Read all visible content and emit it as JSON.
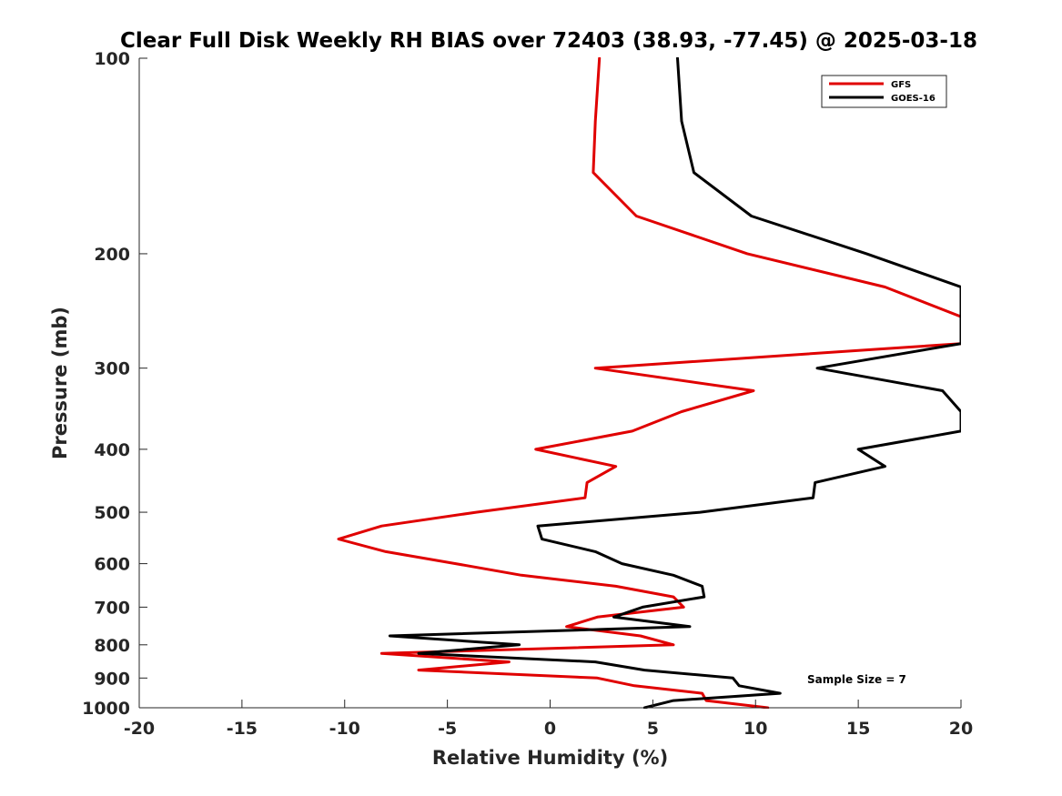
{
  "chart_data": {
    "type": "line",
    "title": "Clear Full Disk Weekly RH BIAS over 72403 (38.93, -77.45) @ 2025-03-18",
    "xlabel": "Relative Humidity (%)",
    "ylabel": "Pressure (mb)",
    "xlim": [
      -20,
      20
    ],
    "ylim": [
      100,
      1000
    ],
    "y_scale": "log",
    "y_reversed": true,
    "x_ticks": [
      "-20",
      "-15",
      "-10",
      "-5",
      "0",
      "5",
      "10",
      "15",
      "20"
    ],
    "y_ticks": [
      "100",
      "200",
      "300",
      "400",
      "500",
      "600",
      "700",
      "800",
      "900",
      "1000"
    ],
    "grid": false,
    "legend_position": "top-right",
    "annotation": "Sample Size = 7",
    "series": [
      {
        "name": "GFS",
        "color": "#e00000",
        "points": [
          [
            2.4,
            100
          ],
          [
            2.2,
            125
          ],
          [
            2.1,
            150
          ],
          [
            4.2,
            175
          ],
          [
            9.6,
            200
          ],
          [
            16.3,
            225
          ],
          [
            20.0,
            250
          ],
          [
            20.0,
            275
          ],
          [
            2.2,
            300
          ],
          [
            9.9,
            325
          ],
          [
            6.4,
            350
          ],
          [
            4.0,
            375
          ],
          [
            -0.7,
            400
          ],
          [
            3.2,
            425
          ],
          [
            1.8,
            450
          ],
          [
            1.7,
            475
          ],
          [
            -3.6,
            500
          ],
          [
            -8.2,
            525
          ],
          [
            -10.3,
            550
          ],
          [
            -8.0,
            575
          ],
          [
            -4.6,
            600
          ],
          [
            -1.4,
            625
          ],
          [
            3.2,
            650
          ],
          [
            6.0,
            675
          ],
          [
            6.5,
            700
          ],
          [
            2.3,
            725
          ],
          [
            0.8,
            750
          ],
          [
            4.4,
            775
          ],
          [
            6.0,
            800
          ],
          [
            -8.2,
            825
          ],
          [
            -2.0,
            850
          ],
          [
            -6.4,
            875
          ],
          [
            2.3,
            900
          ],
          [
            4.1,
            925
          ],
          [
            7.4,
            950
          ],
          [
            7.6,
            975
          ],
          [
            10.6,
            1000
          ]
        ]
      },
      {
        "name": "GOES-16",
        "color": "#000000",
        "points": [
          [
            6.2,
            100
          ],
          [
            6.4,
            125
          ],
          [
            7.0,
            150
          ],
          [
            9.8,
            175
          ],
          [
            15.4,
            200
          ],
          [
            20.0,
            225
          ],
          [
            20.0,
            250
          ],
          [
            20.0,
            275
          ],
          [
            13.0,
            300
          ],
          [
            19.1,
            325
          ],
          [
            20.0,
            350
          ],
          [
            20.0,
            375
          ],
          [
            15.0,
            400
          ],
          [
            16.3,
            425
          ],
          [
            12.9,
            450
          ],
          [
            12.8,
            475
          ],
          [
            7.3,
            500
          ],
          [
            -0.6,
            525
          ],
          [
            -0.4,
            550
          ],
          [
            2.2,
            575
          ],
          [
            3.5,
            600
          ],
          [
            6.0,
            625
          ],
          [
            7.4,
            650
          ],
          [
            7.5,
            675
          ],
          [
            4.5,
            700
          ],
          [
            3.1,
            725
          ],
          [
            6.8,
            750
          ],
          [
            -7.8,
            775
          ],
          [
            -1.5,
            800
          ],
          [
            -6.4,
            825
          ],
          [
            2.2,
            850
          ],
          [
            4.6,
            875
          ],
          [
            8.9,
            900
          ],
          [
            9.2,
            925
          ],
          [
            11.2,
            950
          ],
          [
            6.0,
            975
          ],
          [
            4.6,
            1000
          ]
        ]
      }
    ]
  }
}
